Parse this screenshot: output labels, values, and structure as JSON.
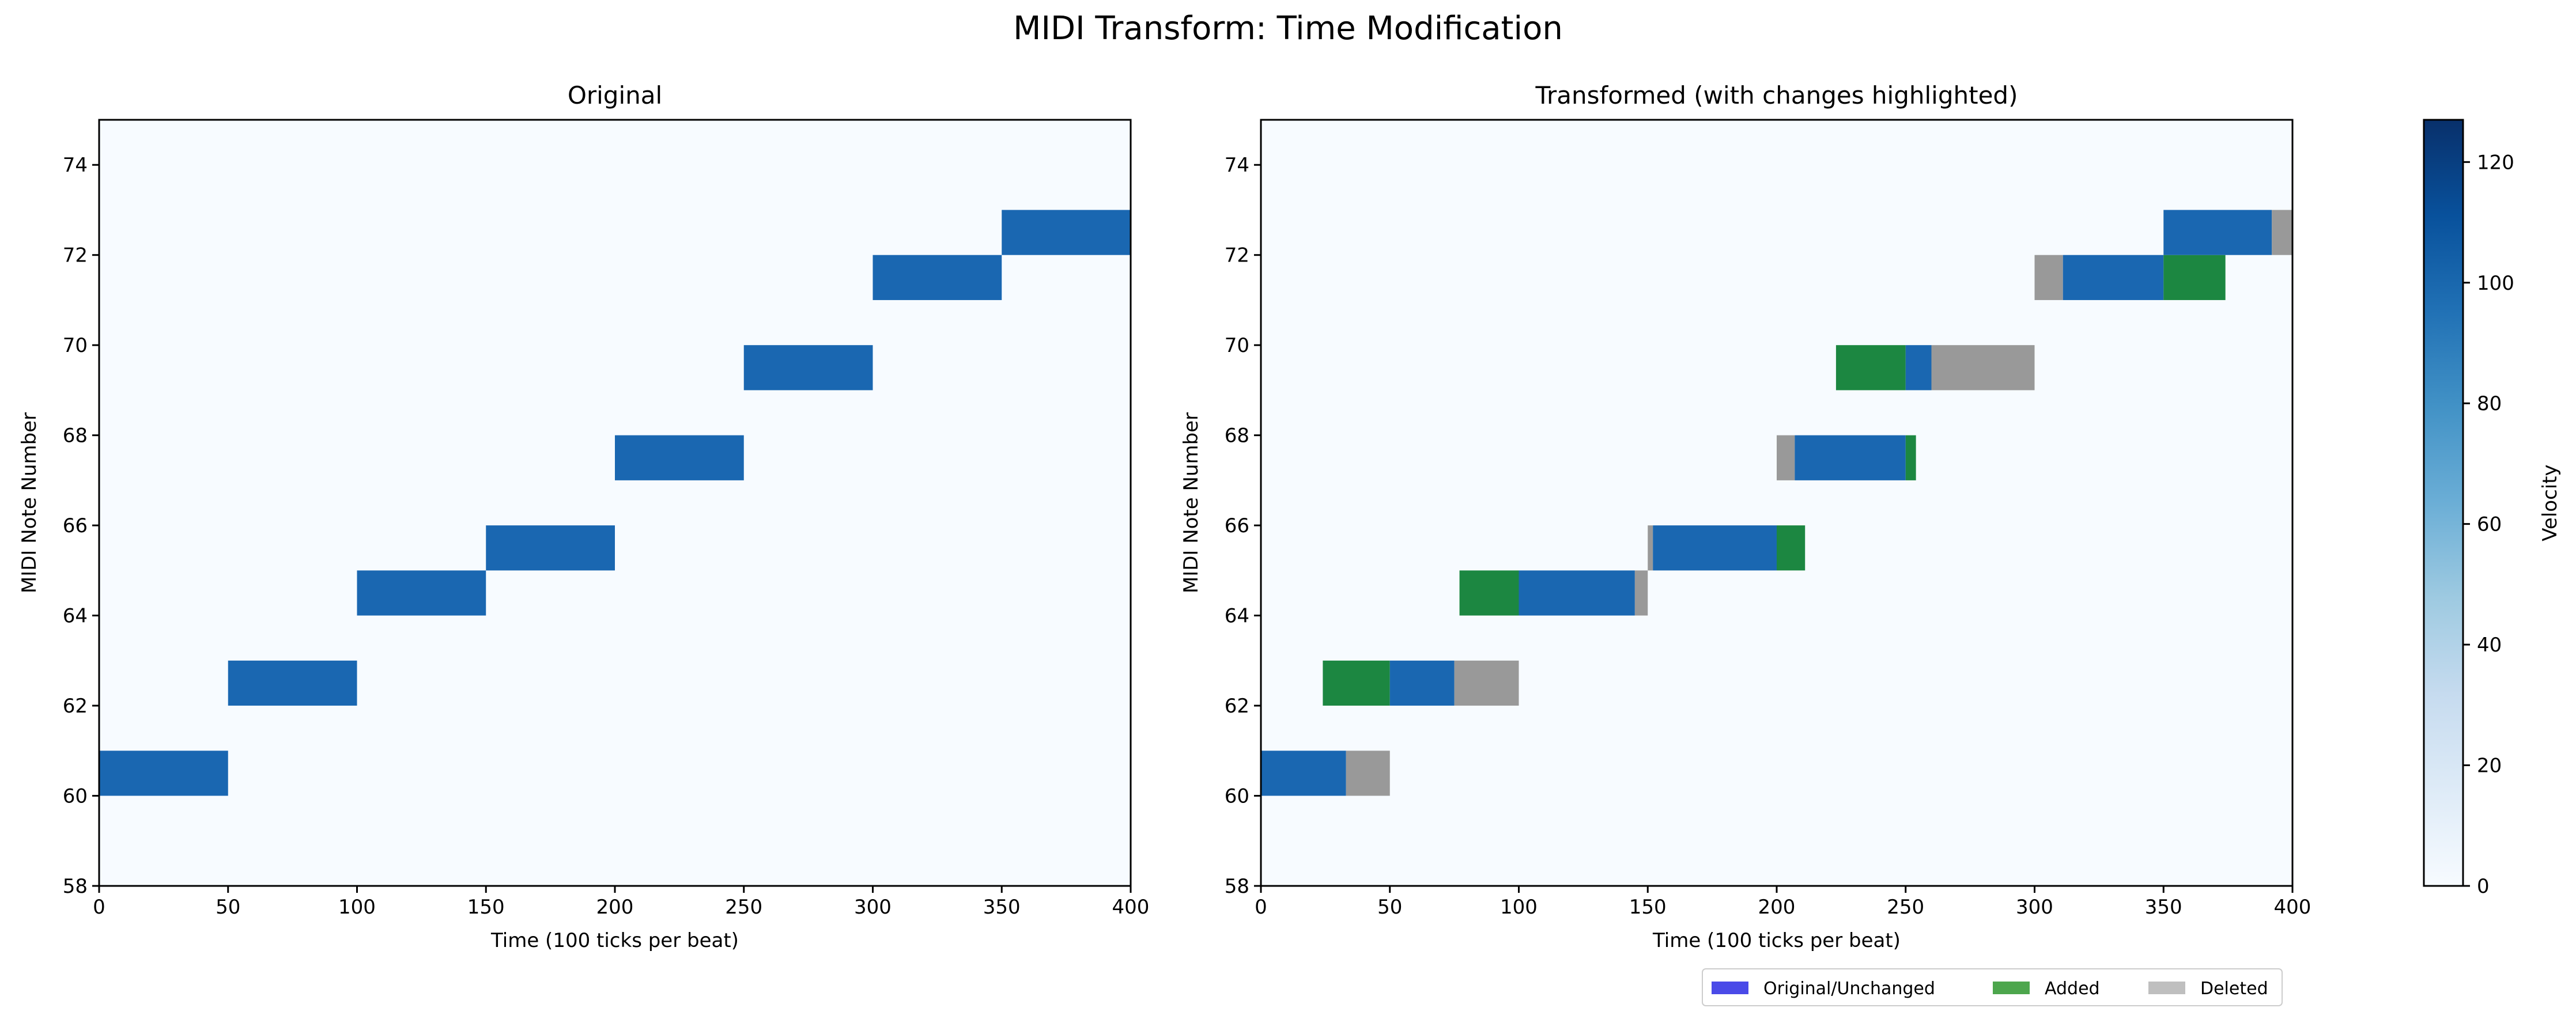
{
  "figure_title": "MIDI Transform: Time Modification",
  "colors": {
    "background": "#f7fbff",
    "note": "#1a67b1",
    "added": "#1c8741",
    "deleted": "#999999",
    "legend_original": "#4a4ae8",
    "legend_added": "#4da64d",
    "legend_deleted": "#bfbfbf"
  },
  "legend": {
    "original": "Original/Unchanged",
    "added": "Added",
    "deleted": "Deleted"
  },
  "colorbar": {
    "label": "Velocity",
    "ticks": [
      0,
      20,
      40,
      60,
      80,
      100,
      120
    ],
    "range": [
      0,
      127
    ],
    "colormap": "Blues"
  },
  "chart_data": [
    {
      "type": "heatmap",
      "title": "Original",
      "xlabel": "Time (100 ticks per beat)",
      "ylabel": "MIDI Note Number",
      "xlim": [
        0,
        400
      ],
      "ylim": [
        58,
        75
      ],
      "xticks": [
        0,
        50,
        100,
        150,
        200,
        250,
        300,
        350,
        400
      ],
      "yticks": [
        58,
        60,
        62,
        64,
        66,
        68,
        70,
        72,
        74
      ],
      "notes": [
        {
          "pitch": 60,
          "start": 0,
          "end": 50,
          "velocity": 100
        },
        {
          "pitch": 62,
          "start": 50,
          "end": 100,
          "velocity": 100
        },
        {
          "pitch": 64,
          "start": 100,
          "end": 150,
          "velocity": 100
        },
        {
          "pitch": 65,
          "start": 150,
          "end": 200,
          "velocity": 100
        },
        {
          "pitch": 67,
          "start": 200,
          "end": 250,
          "velocity": 100
        },
        {
          "pitch": 69,
          "start": 250,
          "end": 300,
          "velocity": 100
        },
        {
          "pitch": 71,
          "start": 300,
          "end": 350,
          "velocity": 100
        },
        {
          "pitch": 72,
          "start": 350,
          "end": 400,
          "velocity": 100
        }
      ]
    },
    {
      "type": "heatmap",
      "title": "Transformed (with changes highlighted)",
      "xlabel": "Time (100 ticks per beat)",
      "ylabel": "MIDI Note Number",
      "xlim": [
        0,
        400
      ],
      "ylim": [
        58,
        75
      ],
      "xticks": [
        0,
        50,
        100,
        150,
        200,
        250,
        300,
        350,
        400
      ],
      "yticks": [
        58,
        60,
        62,
        64,
        66,
        68,
        70,
        72,
        74
      ],
      "segments": [
        {
          "pitch": 60,
          "start": 0,
          "end": 33,
          "kind": "unchanged"
        },
        {
          "pitch": 60,
          "start": 33,
          "end": 50,
          "kind": "deleted"
        },
        {
          "pitch": 62,
          "start": 24,
          "end": 50,
          "kind": "added"
        },
        {
          "pitch": 62,
          "start": 50,
          "end": 75,
          "kind": "unchanged"
        },
        {
          "pitch": 62,
          "start": 75,
          "end": 100,
          "kind": "deleted"
        },
        {
          "pitch": 64,
          "start": 77,
          "end": 100,
          "kind": "added"
        },
        {
          "pitch": 64,
          "start": 100,
          "end": 145,
          "kind": "unchanged"
        },
        {
          "pitch": 64,
          "start": 145,
          "end": 150,
          "kind": "deleted"
        },
        {
          "pitch": 65,
          "start": 150,
          "end": 152,
          "kind": "deleted"
        },
        {
          "pitch": 65,
          "start": 152,
          "end": 200,
          "kind": "unchanged"
        },
        {
          "pitch": 65,
          "start": 200,
          "end": 211,
          "kind": "added"
        },
        {
          "pitch": 67,
          "start": 200,
          "end": 207,
          "kind": "deleted"
        },
        {
          "pitch": 67,
          "start": 207,
          "end": 250,
          "kind": "unchanged"
        },
        {
          "pitch": 67,
          "start": 250,
          "end": 254,
          "kind": "added"
        },
        {
          "pitch": 69,
          "start": 223,
          "end": 250,
          "kind": "added"
        },
        {
          "pitch": 69,
          "start": 250,
          "end": 260,
          "kind": "unchanged"
        },
        {
          "pitch": 69,
          "start": 260,
          "end": 300,
          "kind": "deleted"
        },
        {
          "pitch": 71,
          "start": 300,
          "end": 311,
          "kind": "deleted"
        },
        {
          "pitch": 71,
          "start": 311,
          "end": 350,
          "kind": "unchanged"
        },
        {
          "pitch": 71,
          "start": 350,
          "end": 374,
          "kind": "added"
        },
        {
          "pitch": 72,
          "start": 350,
          "end": 392,
          "kind": "unchanged"
        },
        {
          "pitch": 72,
          "start": 392,
          "end": 400,
          "kind": "deleted"
        }
      ]
    }
  ]
}
